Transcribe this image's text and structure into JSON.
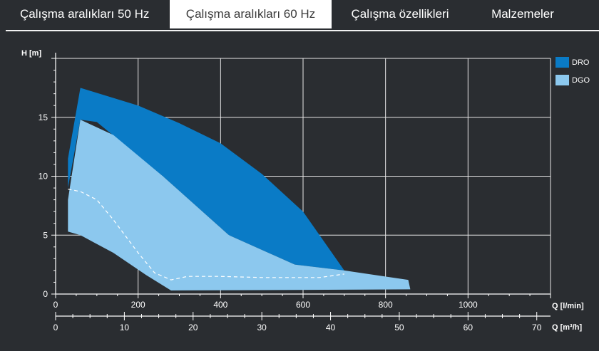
{
  "tabs": [
    {
      "label": "Çalışma aralıkları 50 Hz",
      "active": false
    },
    {
      "label": "Çalışma aralıkları 60 Hz",
      "active": true
    },
    {
      "label": "Çalışma özellikleri",
      "active": false
    },
    {
      "label": "Malzemeler",
      "active": false
    }
  ],
  "chart_data": {
    "type": "area",
    "ylabel": "H [m]",
    "xlabel": "Q [l/min]",
    "x2label": "Q [m³/h]",
    "xlim": [
      0,
      1200
    ],
    "ylim": [
      0,
      20
    ],
    "x2lim": [
      0,
      72
    ],
    "x_ticks": [
      0,
      200,
      400,
      600,
      800,
      1000
    ],
    "y_ticks": [
      0,
      5,
      10,
      15
    ],
    "x2_ticks": [
      0,
      10,
      20,
      30,
      40,
      50,
      60,
      70
    ],
    "grid": true,
    "legend_position": "top-right",
    "series": [
      {
        "name": "DRO",
        "color": "#0a7bc6",
        "envelope": [
          [
            30,
            9
          ],
          [
            30,
            11.5
          ],
          [
            60,
            17.5
          ],
          [
            200,
            16
          ],
          [
            300,
            14.5
          ],
          [
            400,
            12.8
          ],
          [
            500,
            10.2
          ],
          [
            600,
            7
          ],
          [
            650,
            4.5
          ],
          [
            700,
            2
          ],
          [
            580,
            2.5
          ],
          [
            420,
            5
          ],
          [
            260,
            10
          ],
          [
            100,
            14.6
          ],
          [
            60,
            14.8
          ],
          [
            30,
            9
          ]
        ]
      },
      {
        "name": "DGO",
        "color": "#8cc8ee",
        "envelope": [
          [
            30,
            5.3
          ],
          [
            30,
            8
          ],
          [
            60,
            14.8
          ],
          [
            140,
            13.5
          ],
          [
            260,
            10
          ],
          [
            420,
            5
          ],
          [
            580,
            2.5
          ],
          [
            700,
            2
          ],
          [
            855,
            1.2
          ],
          [
            860,
            0.4
          ],
          [
            280,
            0.3
          ],
          [
            220,
            1.6
          ],
          [
            140,
            3.5
          ],
          [
            60,
            5
          ],
          [
            30,
            5.3
          ]
        ]
      },
      {
        "name": "",
        "color": "#ffffff",
        "style": "dashed",
        "points": [
          [
            30,
            8.9
          ],
          [
            60,
            8.7
          ],
          [
            100,
            8
          ],
          [
            140,
            6.3
          ],
          [
            200,
            3.5
          ],
          [
            240,
            1.8
          ],
          [
            280,
            1.2
          ],
          [
            320,
            1.5
          ],
          [
            400,
            1.5
          ],
          [
            500,
            1.4
          ],
          [
            640,
            1.4
          ],
          [
            700,
            1.7
          ]
        ]
      }
    ]
  }
}
